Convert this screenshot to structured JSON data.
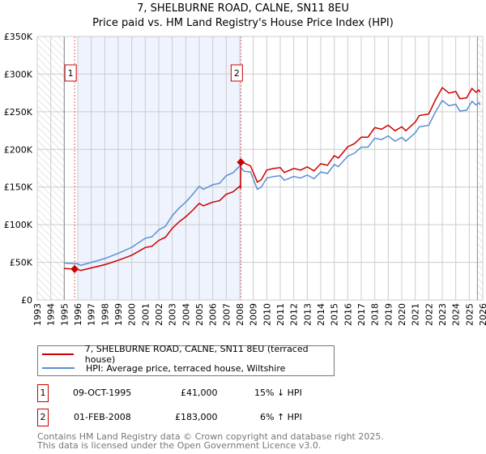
{
  "chart_data": {
    "type": "line",
    "title": "7, SHELBURNE ROAD, CALNE, SN11 8EU",
    "subtitle": "Price paid vs. HM Land Registry's House Price Index (HPI)",
    "xlim": [
      1993,
      2026
    ],
    "ylim": [
      0,
      350
    ],
    "yticks": [
      {
        "v": 0,
        "label": "£0"
      },
      {
        "v": 50,
        "label": "£50K"
      },
      {
        "v": 100,
        "label": "£100K"
      },
      {
        "v": 150,
        "label": "£150K"
      },
      {
        "v": 200,
        "label": "£200K"
      },
      {
        "v": 250,
        "label": "£250K"
      },
      {
        "v": 300,
        "label": "£300K"
      },
      {
        "v": 350,
        "label": "£350K"
      }
    ],
    "xticks": [
      "1993",
      "1994",
      "1995",
      "1996",
      "1997",
      "1998",
      "1999",
      "2000",
      "2001",
      "2002",
      "2003",
      "2004",
      "2005",
      "2006",
      "2007",
      "2008",
      "2009",
      "2010",
      "2011",
      "2012",
      "2013",
      "2014",
      "2015",
      "2016",
      "2017",
      "2018",
      "2019",
      "2020",
      "2021",
      "2022",
      "2023",
      "2024",
      "2025",
      "2026"
    ],
    "hatched_ranges": [
      [
        1993,
        1995
      ],
      [
        2025.6,
        2026
      ]
    ],
    "shaded_range": [
      1996,
      2008.08
    ],
    "colors": {
      "price": "#cc0000",
      "hpi": "#5b8fd0",
      "shade": "#eef3fd"
    },
    "series": [
      {
        "name": "7, SHELBURNE ROAD, CALNE, SN11 8EU (terraced house)",
        "color": "#cc0000",
        "x": [
          1995,
          1995.77,
          1996,
          1996.2,
          1997,
          1998,
          1999,
          2000,
          2001,
          2001.5,
          2002,
          2002.5,
          2003,
          2003.5,
          2004,
          2004.5,
          2005,
          2005.3,
          2006,
          2006.5,
          2007,
          2007.5,
          2008,
          2008.06,
          2008.08,
          2008.3,
          2008.8,
          2009.3,
          2009.6,
          2010,
          2010.5,
          2011,
          2011.3,
          2012,
          2012.5,
          2013,
          2013.5,
          2014,
          2014.5,
          2015,
          2015.3,
          2016,
          2016.5,
          2017,
          2017.5,
          2018,
          2018.5,
          2019,
          2019.5,
          2020,
          2020.3,
          2021,
          2021.3,
          2022,
          2022.5,
          2023,
          2023.5,
          2024,
          2024.3,
          2024.8,
          2025.2,
          2025.5,
          2025.7,
          2025.8
        ],
        "y": [
          41.7,
          41,
          40.8,
          39.1,
          42.5,
          46.8,
          52.7,
          59.5,
          69.7,
          71.4,
          79,
          83.3,
          95.2,
          103.7,
          110.5,
          119,
          128.4,
          125,
          130,
          131.8,
          140.3,
          143.7,
          151,
          148,
          183,
          182,
          178,
          156.6,
          159.8,
          172.5,
          174.7,
          175.7,
          169.3,
          174.7,
          172.5,
          176.8,
          171.5,
          181,
          178.9,
          191.7,
          188.5,
          203.4,
          207.7,
          216.2,
          216.2,
          229,
          226.8,
          232.2,
          224.7,
          230,
          224.7,
          236.4,
          245,
          247,
          266,
          282,
          274.8,
          276.9,
          267.3,
          268.4,
          281,
          275.8,
          279,
          275.8
        ]
      },
      {
        "name": "HPI: Average price, terraced house, Wiltshire",
        "color": "#5b8fd0",
        "x": [
          1995,
          1996,
          1996.2,
          1997,
          1998,
          1999,
          2000,
          2001,
          2001.5,
          2002,
          2002.5,
          2003,
          2003.5,
          2004,
          2004.5,
          2005,
          2005.3,
          2006,
          2006.5,
          2007,
          2007.5,
          2008,
          2008.3,
          2008.8,
          2009.3,
          2009.6,
          2010,
          2010.5,
          2011,
          2011.3,
          2012,
          2012.5,
          2013,
          2013.5,
          2014,
          2014.5,
          2015,
          2015.3,
          2016,
          2016.5,
          2017,
          2017.5,
          2018,
          2018.5,
          2019,
          2019.5,
          2020,
          2020.3,
          2021,
          2021.3,
          2022,
          2022.5,
          2023,
          2023.5,
          2024,
          2024.3,
          2024.8,
          2025.2,
          2025.5,
          2025.7,
          2025.8
        ],
        "y": [
          49,
          48,
          46,
          50,
          55,
          62,
          70,
          82,
          84,
          93,
          98,
          112,
          122,
          130,
          140,
          151,
          147,
          153,
          155,
          165,
          169,
          178,
          171,
          170,
          147,
          150,
          162,
          164,
          165,
          159,
          164,
          162,
          166,
          161,
          170,
          168,
          180,
          177,
          191,
          195,
          203,
          203,
          215,
          213,
          218,
          211,
          216,
          211,
          222,
          230,
          232,
          250,
          265,
          258,
          260,
          251,
          252,
          264,
          259,
          262,
          259
        ]
      }
    ],
    "sales": [
      {
        "label": "1",
        "x": 1995.77,
        "y": 41
      },
      {
        "label": "2",
        "x": 2008.08,
        "y": 183
      }
    ]
  },
  "legend": {
    "price": "7, SHELBURNE ROAD, CALNE, SN11 8EU (terraced house)",
    "hpi": "HPI: Average price, terraced house, Wiltshire"
  },
  "transactions": [
    {
      "num": "1",
      "date": "09-OCT-1995",
      "price": "£41,000",
      "hpi": "15% ↓ HPI"
    },
    {
      "num": "2",
      "date": "01-FEB-2008",
      "price": "£183,000",
      "hpi": "6% ↑ HPI"
    }
  ],
  "footer": {
    "line1": "Contains HM Land Registry data © Crown copyright and database right 2025.",
    "line2": "This data is licensed under the Open Government Licence v3.0."
  }
}
